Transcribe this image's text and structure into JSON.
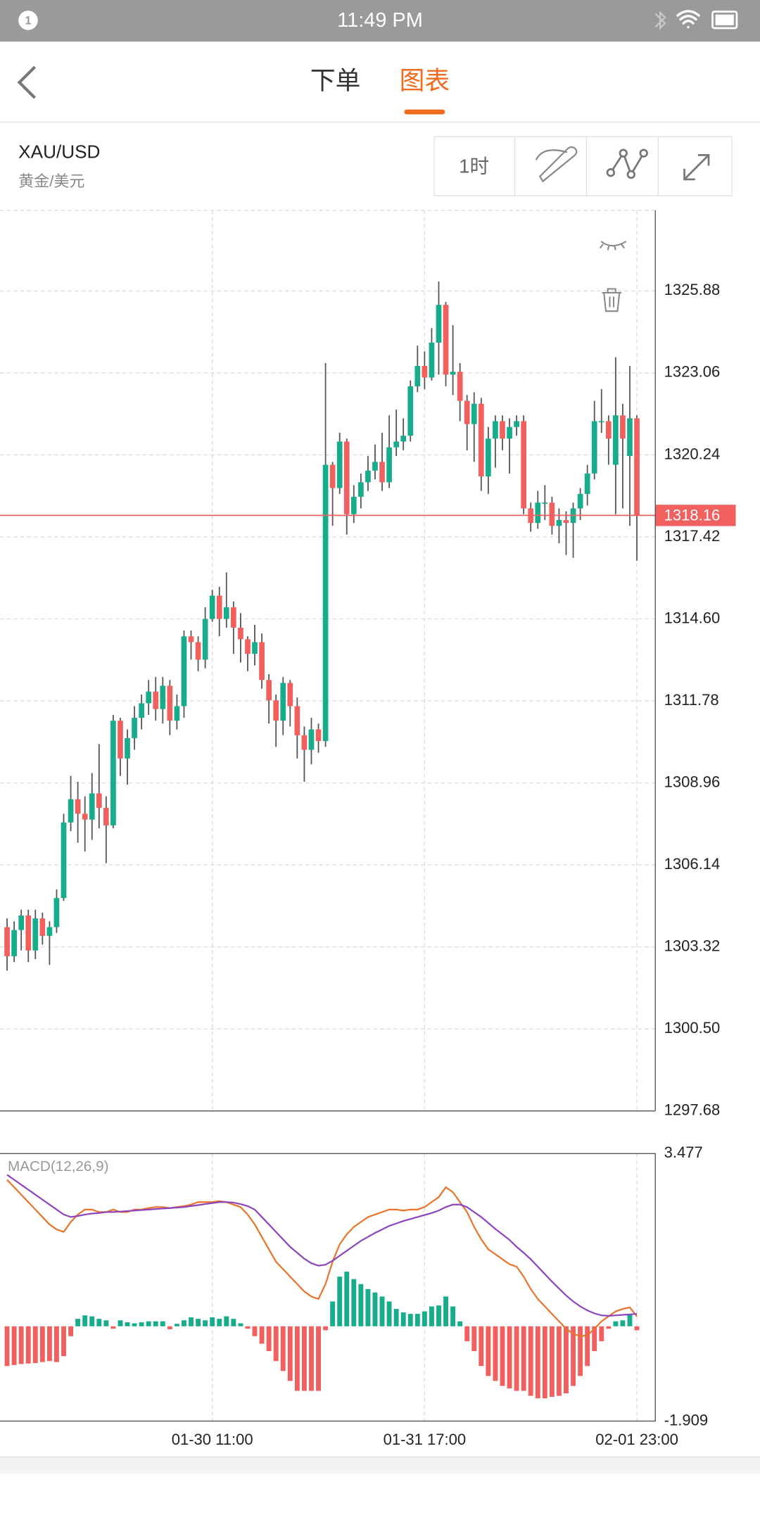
{
  "status_bar": {
    "notification_count": "1",
    "time": "11:49 PM"
  },
  "header": {
    "tabs": [
      "下单",
      "图表"
    ],
    "active_tab": 1,
    "active_color": "#f26b1d"
  },
  "instrument": {
    "symbol": "XAU/USD",
    "name": "黄金/美元"
  },
  "toolbar": {
    "interval": "1时"
  },
  "chart_data": [
    {
      "type": "candlestick",
      "up_color": "#17ad8c",
      "down_color": "#f0605e",
      "grid": true,
      "ylim": [
        1297.68,
        1328.65
      ],
      "yticks": [
        1297.68,
        {
          "value": 1300.5,
          "label": "1300.50"
        },
        1303.32,
        1306.14,
        1308.96,
        1311.78,
        {
          "value": 1314.6,
          "label": "1314.60"
        },
        1317.42,
        1320.24,
        1323.06,
        1325.88
      ],
      "last_price": 1318.16,
      "last_price_color": "#f0605e",
      "open": [
        1304.0,
        1303.0,
        1303.9,
        1304.4,
        1303.2,
        1304.3,
        1303.7,
        1304.0,
        1305.0,
        1307.6,
        1308.4,
        1307.9,
        1307.7,
        1308.6,
        1308.1,
        1307.5,
        1311.1,
        1309.8,
        1310.5,
        1311.2,
        1311.7,
        1312.1,
        1311.5,
        1312.3,
        1311.1,
        1311.6,
        1314.0,
        1313.8,
        1313.2,
        1314.6,
        1315.4,
        1314.6,
        1315.0,
        1314.3,
        1313.9,
        1313.4,
        1313.8,
        1312.5,
        1311.8,
        1311.1,
        1312.4,
        1311.6,
        1310.6,
        1310.1,
        1310.8,
        1310.4,
        1319.9,
        1319.1,
        1320.7,
        1318.2,
        1318.8,
        1319.3,
        1319.7,
        1320.0,
        1319.3,
        1320.5,
        1320.7,
        1320.9,
        1322.6,
        1323.3,
        1322.9,
        1324.1,
        1325.4,
        1323.0,
        1323.1,
        1322.1,
        1321.3,
        1322.0,
        1319.5,
        1320.8,
        1321.4,
        1320.8,
        1321.2,
        1321.4,
        1318.4,
        1317.9,
        1318.6,
        1318.6,
        1317.8,
        1318.0,
        1317.9,
        1318.4,
        1318.9,
        1319.6,
        1321.4,
        1321.4,
        1319.9,
        1321.6,
        1320.2,
        1321.5
      ],
      "high": [
        1304.3,
        1304.2,
        1304.6,
        1304.6,
        1304.6,
        1304.5,
        1304.2,
        1305.3,
        1307.9,
        1309.2,
        1309.0,
        1308.5,
        1309.3,
        1310.3,
        1308.5,
        1311.3,
        1311.2,
        1310.8,
        1311.6,
        1312.0,
        1312.5,
        1312.6,
        1312.6,
        1312.5,
        1312.0,
        1314.2,
        1314.2,
        1314.0,
        1315.0,
        1315.6,
        1315.7,
        1316.2,
        1315.2,
        1314.8,
        1314.0,
        1314.4,
        1314.1,
        1312.7,
        1312.0,
        1312.6,
        1312.5,
        1311.9,
        1310.9,
        1311.2,
        1311.0,
        1323.4,
        1320.0,
        1321.0,
        1320.8,
        1319.2,
        1319.6,
        1320.2,
        1320.6,
        1321.0,
        1321.6,
        1321.8,
        1321.5,
        1322.8,
        1324.0,
        1323.8,
        1324.6,
        1326.2,
        1325.5,
        1324.7,
        1323.4,
        1322.3,
        1322.4,
        1322.2,
        1321.2,
        1321.6,
        1321.6,
        1321.5,
        1321.6,
        1321.6,
        1318.6,
        1319.0,
        1319.2,
        1318.8,
        1318.4,
        1318.3,
        1318.6,
        1319.1,
        1319.9,
        1322.1,
        1322.5,
        1321.6,
        1323.6,
        1322.0,
        1323.3,
        1321.6
      ],
      "low": [
        1302.5,
        1302.8,
        1303.2,
        1302.8,
        1302.9,
        1303.4,
        1302.7,
        1303.8,
        1304.9,
        1307.3,
        1306.9,
        1306.6,
        1307.0,
        1307.4,
        1306.2,
        1307.4,
        1309.2,
        1308.9,
        1310.1,
        1310.8,
        1311.3,
        1311.1,
        1311.0,
        1310.6,
        1310.8,
        1311.2,
        1313.2,
        1312.8,
        1312.9,
        1314.5,
        1314.0,
        1314.3,
        1313.4,
        1313.1,
        1312.8,
        1313.0,
        1312.2,
        1311.0,
        1310.2,
        1310.6,
        1310.9,
        1309.8,
        1309.0,
        1309.6,
        1310.0,
        1310.2,
        1317.8,
        1318.9,
        1317.5,
        1317.9,
        1318.4,
        1319.0,
        1319.4,
        1319.0,
        1319.1,
        1320.2,
        1320.4,
        1320.7,
        1322.4,
        1322.5,
        1322.8,
        1323.0,
        1322.6,
        1322.3,
        1321.4,
        1320.4,
        1320.0,
        1319.0,
        1318.9,
        1319.8,
        1320.4,
        1319.6,
        1320.9,
        1318.2,
        1317.6,
        1317.7,
        1318.0,
        1317.5,
        1317.2,
        1316.8,
        1316.7,
        1318.0,
        1318.5,
        1319.4,
        1321.0,
        1319.9,
        1318.2,
        1318.4,
        1317.8,
        1316.6
      ],
      "close": [
        1303.0,
        1303.9,
        1304.4,
        1303.2,
        1304.3,
        1303.7,
        1304.0,
        1305.0,
        1307.6,
        1308.4,
        1307.9,
        1307.7,
        1308.6,
        1308.1,
        1307.5,
        1311.1,
        1309.8,
        1310.5,
        1311.2,
        1311.7,
        1312.1,
        1311.5,
        1312.3,
        1311.1,
        1311.6,
        1314.0,
        1313.8,
        1313.2,
        1314.6,
        1315.4,
        1314.6,
        1315.0,
        1314.3,
        1313.9,
        1313.4,
        1313.8,
        1312.5,
        1311.8,
        1311.1,
        1312.4,
        1311.6,
        1310.6,
        1310.1,
        1310.8,
        1310.4,
        1319.9,
        1319.1,
        1320.7,
        1318.2,
        1318.8,
        1319.3,
        1319.7,
        1320.0,
        1319.3,
        1320.5,
        1320.7,
        1320.9,
        1322.6,
        1323.3,
        1322.9,
        1324.1,
        1325.4,
        1323.0,
        1323.1,
        1322.1,
        1321.3,
        1322.0,
        1319.5,
        1320.8,
        1321.4,
        1320.8,
        1321.2,
        1321.4,
        1318.4,
        1317.9,
        1318.6,
        1318.6,
        1317.8,
        1318.0,
        1317.9,
        1318.4,
        1318.9,
        1319.6,
        1321.4,
        1321.4,
        1320.8,
        1321.6,
        1320.8,
        1321.5,
        1318.16
      ]
    },
    {
      "type": "macd",
      "title": "MACD(12,26,9)",
      "categories": [
        null,
        null,
        null,
        null,
        null,
        null,
        null,
        null,
        null,
        null,
        null,
        null,
        null,
        null,
        null,
        null,
        null,
        null,
        null,
        null,
        null,
        null,
        null,
        null,
        null,
        null,
        null,
        null,
        null,
        "01-30 11:00",
        null,
        null,
        null,
        null,
        null,
        null,
        null,
        null,
        null,
        null,
        null,
        null,
        null,
        null,
        null,
        null,
        null,
        null,
        null,
        null,
        null,
        null,
        null,
        null,
        null,
        null,
        null,
        null,
        null,
        "01-31 17:00",
        null,
        null,
        null,
        null,
        null,
        null,
        null,
        null,
        null,
        null,
        null,
        null,
        null,
        null,
        null,
        null,
        null,
        null,
        null,
        null,
        null,
        null,
        null,
        null,
        null,
        null,
        null,
        null,
        null,
        "02-01 23:00"
      ],
      "ylim": [
        -1.909,
        3.477
      ],
      "yticks": [
        -1.909,
        3.477
      ],
      "up_color": "#17ad8c",
      "down_color": "#f0605e",
      "histogram": [
        -0.8,
        -0.78,
        -0.76,
        -0.75,
        -0.74,
        -0.72,
        -0.7,
        -0.72,
        -0.6,
        -0.2,
        0.15,
        0.22,
        0.2,
        0.15,
        0.12,
        -0.05,
        0.12,
        0.08,
        0.06,
        0.08,
        0.1,
        0.1,
        0.1,
        -0.06,
        0.05,
        0.12,
        0.18,
        0.15,
        0.12,
        0.18,
        0.15,
        0.2,
        0.15,
        0.06,
        -0.05,
        -0.2,
        -0.35,
        -0.5,
        -0.7,
        -0.9,
        -1.1,
        -1.3,
        -1.3,
        -1.3,
        -1.3,
        -0.08,
        0.5,
        1.0,
        1.1,
        0.95,
        0.85,
        0.75,
        0.68,
        0.6,
        0.5,
        0.35,
        0.28,
        0.25,
        0.25,
        0.3,
        0.4,
        0.42,
        0.6,
        0.4,
        0.1,
        -0.3,
        -0.5,
        -0.8,
        -1.0,
        -1.1,
        -1.2,
        -1.25,
        -1.3,
        -1.3,
        -1.4,
        -1.45,
        -1.45,
        -1.42,
        -1.4,
        -1.35,
        -1.2,
        -1.0,
        -0.8,
        -0.5,
        -0.3,
        -0.05,
        0.1,
        0.12,
        0.25,
        -0.08
      ],
      "lines": [
        {
          "color": "#e8742b",
          "values": [
            2.95,
            2.8,
            2.65,
            2.5,
            2.35,
            2.2,
            2.05,
            1.95,
            1.9,
            2.1,
            2.25,
            2.35,
            2.35,
            2.3,
            2.3,
            2.35,
            2.3,
            2.3,
            2.35,
            2.35,
            2.38,
            2.4,
            2.4,
            2.38,
            2.4,
            2.42,
            2.45,
            2.5,
            2.5,
            2.5,
            2.52,
            2.5,
            2.45,
            2.4,
            2.25,
            2.05,
            1.8,
            1.55,
            1.3,
            1.15,
            1.0,
            0.85,
            0.7,
            0.6,
            0.55,
            0.85,
            1.3,
            1.65,
            1.85,
            2.0,
            2.1,
            2.2,
            2.25,
            2.3,
            2.35,
            2.35,
            2.33,
            2.35,
            2.35,
            2.4,
            2.5,
            2.6,
            2.8,
            2.7,
            2.5,
            2.3,
            2.0,
            1.75,
            1.55,
            1.45,
            1.35,
            1.25,
            1.2,
            1.0,
            0.75,
            0.55,
            0.4,
            0.25,
            0.1,
            -0.05,
            -0.15,
            -0.2,
            -0.18,
            -0.05,
            0.1,
            0.2,
            0.3,
            0.35,
            0.38,
            0.2
          ]
        },
        {
          "color": "#8e44bd",
          "values": [
            3.05,
            2.95,
            2.85,
            2.75,
            2.65,
            2.55,
            2.45,
            2.35,
            2.25,
            2.2,
            2.22,
            2.25,
            2.27,
            2.28,
            2.3,
            2.3,
            2.31,
            2.32,
            2.33,
            2.34,
            2.35,
            2.36,
            2.37,
            2.38,
            2.39,
            2.4,
            2.42,
            2.44,
            2.46,
            2.48,
            2.5,
            2.5,
            2.49,
            2.46,
            2.42,
            2.35,
            2.2,
            2.05,
            1.9,
            1.75,
            1.6,
            1.48,
            1.36,
            1.27,
            1.22,
            1.24,
            1.32,
            1.42,
            1.52,
            1.62,
            1.72,
            1.8,
            1.88,
            1.95,
            2.02,
            2.07,
            2.12,
            2.16,
            2.2,
            2.24,
            2.28,
            2.33,
            2.4,
            2.45,
            2.45,
            2.4,
            2.3,
            2.2,
            2.08,
            1.96,
            1.85,
            1.74,
            1.6,
            1.48,
            1.35,
            1.2,
            1.05,
            0.9,
            0.76,
            0.62,
            0.5,
            0.4,
            0.32,
            0.26,
            0.22,
            0.21,
            0.22,
            0.23,
            0.24,
            0.25
          ]
        }
      ]
    }
  ]
}
